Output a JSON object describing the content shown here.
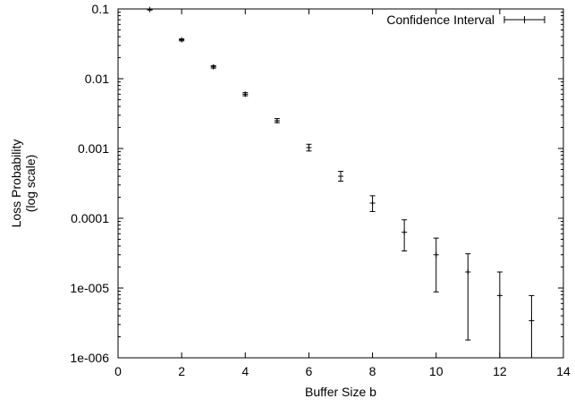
{
  "chart_data": {
    "type": "scatter",
    "xlabel": "Buffer Size b",
    "ylabel_lines": [
      "Loss Probability",
      "(log scale)"
    ],
    "xlim": [
      0,
      14
    ],
    "ylim": [
      1e-06,
      0.1
    ],
    "y_scale": "log",
    "x_ticks": [
      0,
      2,
      4,
      6,
      8,
      10,
      12,
      14
    ],
    "y_ticks": [
      {
        "value": 0.1,
        "label": "0.1"
      },
      {
        "value": 0.01,
        "label": "0.01"
      },
      {
        "value": 0.001,
        "label": "0.001"
      },
      {
        "value": 0.0001,
        "label": "0.0001"
      },
      {
        "value": 1e-05,
        "label": "1e-005"
      },
      {
        "value": 1e-06,
        "label": "1e-006"
      }
    ],
    "grid": false,
    "legend_position": "top-right",
    "series": [
      {
        "name": "Confidence Interval",
        "style": "error-bars",
        "points": [
          {
            "x": 1,
            "y": 0.098,
            "low": 0.0965,
            "high": 0.0995
          },
          {
            "x": 2,
            "y": 0.036,
            "low": 0.0348,
            "high": 0.0372
          },
          {
            "x": 3,
            "y": 0.0148,
            "low": 0.0142,
            "high": 0.0154
          },
          {
            "x": 4,
            "y": 0.006,
            "low": 0.0057,
            "high": 0.0063
          },
          {
            "x": 5,
            "y": 0.0025,
            "low": 0.00235,
            "high": 0.00268
          },
          {
            "x": 6,
            "y": 0.00103,
            "low": 0.00092,
            "high": 0.00115
          },
          {
            "x": 7,
            "y": 0.0004,
            "low": 0.00034,
            "high": 0.00047
          },
          {
            "x": 8,
            "y": 0.000165,
            "low": 0.000125,
            "high": 0.00021
          },
          {
            "x": 9,
            "y": 6.3e-05,
            "low": 3.4e-05,
            "high": 9.5e-05
          },
          {
            "x": 10,
            "y": 3e-05,
            "low": 8.8e-06,
            "high": 5.2e-05
          },
          {
            "x": 11,
            "y": 1.7e-05,
            "low": 1.8e-06,
            "high": 3.1e-05
          },
          {
            "x": 12,
            "y": 7.8e-06,
            "low": 1e-06,
            "high": 1.7e-05
          },
          {
            "x": 13,
            "y": 3.4e-06,
            "low": 1e-06,
            "high": 7.8e-06
          }
        ]
      }
    ]
  }
}
